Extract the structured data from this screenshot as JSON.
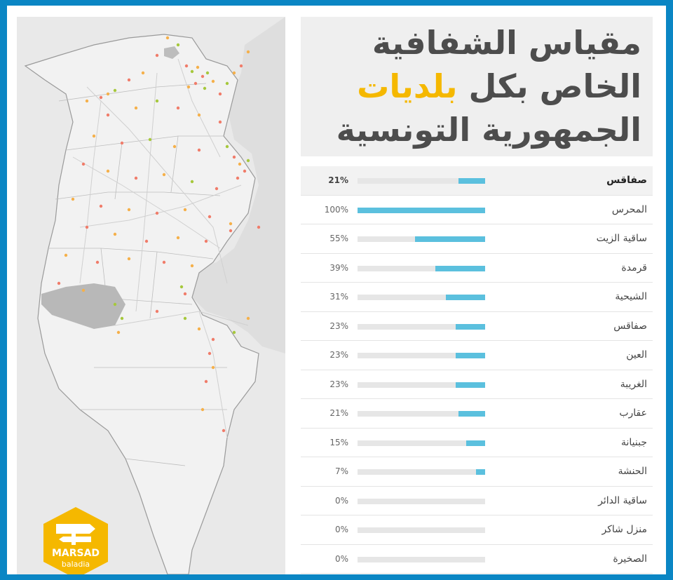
{
  "title": {
    "line1": "مقياس الشفافية",
    "line2_before": "الخاص بكل",
    "line2_highlight": "بلديات",
    "line3": "الجمهورية التونسية"
  },
  "logo": {
    "name": "MARSAD",
    "sub": "baladia",
    "color": "#f5b800"
  },
  "colors": {
    "bar": "#5bc0de",
    "track": "#e6e6e6",
    "highlight": "#f5b800",
    "dot_red": "#f07c6a",
    "dot_orange": "#f5b04a",
    "dot_green": "#a6c83c"
  },
  "chart_data": {
    "type": "bar",
    "orientation": "horizontal",
    "categories": [
      "صفاقس",
      "المحرس",
      "ساقية الزيت",
      "قرمدة",
      "الشيحية",
      "صفاقس",
      "العين",
      "الغريبة",
      "عقارب",
      "جبنيانة",
      "الحنشة",
      "ساقية الدائر",
      "منزل شاكر",
      "الصخيرة"
    ],
    "values": [
      21,
      100,
      55,
      39,
      31,
      23,
      23,
      23,
      21,
      15,
      7,
      0,
      0,
      0
    ],
    "labels": [
      "21%",
      "100%",
      "55%",
      "39%",
      "31%",
      "23%",
      "23%",
      "23%",
      "21%",
      "15%",
      "7%",
      "0%",
      "0%",
      "0%"
    ],
    "highlighted_index": 0,
    "xlim": [
      0,
      100
    ]
  }
}
